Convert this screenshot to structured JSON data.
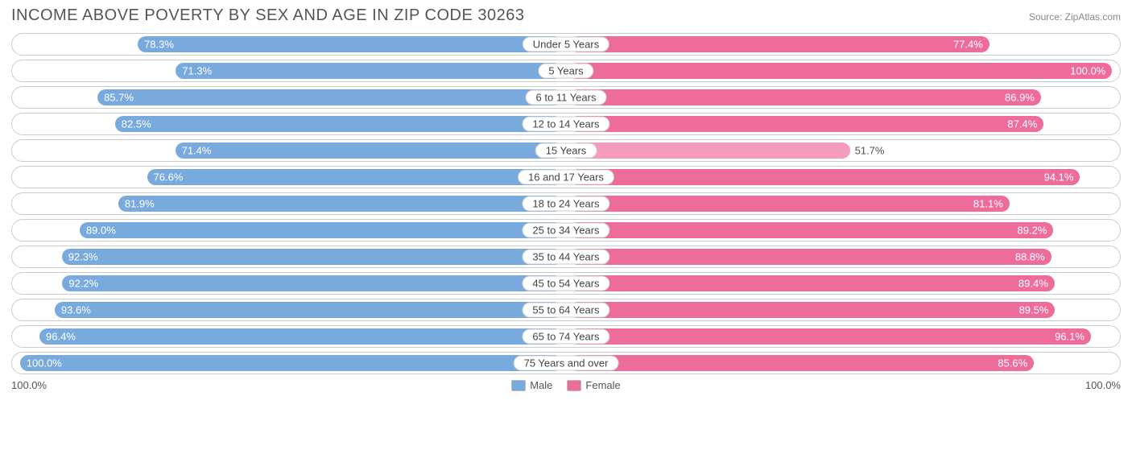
{
  "title": "INCOME ABOVE POVERTY BY SEX AND AGE IN ZIP CODE 30263",
  "source": "Source: ZipAtlas.com",
  "colors": {
    "male": "#79aade",
    "female": "#ed6c9b",
    "female_alt": "#f59bbd",
    "track_border": "#cccccc",
    "background": "#ffffff",
    "text": "#555555"
  },
  "axis": {
    "left_label": "100.0%",
    "right_label": "100.0%"
  },
  "legend": {
    "male": "Male",
    "female": "Female"
  },
  "rows": [
    {
      "category": "Under 5 Years",
      "male": 78.3,
      "male_label": "78.3%",
      "female": 77.4,
      "female_label": "77.4%"
    },
    {
      "category": "5 Years",
      "male": 71.3,
      "male_label": "71.3%",
      "female": 100.0,
      "female_label": "100.0%"
    },
    {
      "category": "6 to 11 Years",
      "male": 85.7,
      "male_label": "85.7%",
      "female": 86.9,
      "female_label": "86.9%"
    },
    {
      "category": "12 to 14 Years",
      "male": 82.5,
      "male_label": "82.5%",
      "female": 87.4,
      "female_label": "87.4%"
    },
    {
      "category": "15 Years",
      "male": 71.4,
      "male_label": "71.4%",
      "female": 51.7,
      "female_label": "51.7%",
      "female_alt": true,
      "short": true
    },
    {
      "category": "16 and 17 Years",
      "male": 76.6,
      "male_label": "76.6%",
      "female": 94.1,
      "female_label": "94.1%"
    },
    {
      "category": "18 to 24 Years",
      "male": 81.9,
      "male_label": "81.9%",
      "female": 81.1,
      "female_label": "81.1%"
    },
    {
      "category": "25 to 34 Years",
      "male": 89.0,
      "male_label": "89.0%",
      "female": 89.2,
      "female_label": "89.2%"
    },
    {
      "category": "35 to 44 Years",
      "male": 92.3,
      "male_label": "92.3%",
      "female": 88.8,
      "female_label": "88.8%"
    },
    {
      "category": "45 to 54 Years",
      "male": 92.2,
      "male_label": "92.2%",
      "female": 89.4,
      "female_label": "89.4%"
    },
    {
      "category": "55 to 64 Years",
      "male": 93.6,
      "male_label": "93.6%",
      "female": 89.5,
      "female_label": "89.5%"
    },
    {
      "category": "65 to 74 Years",
      "male": 96.4,
      "male_label": "96.4%",
      "female": 96.1,
      "female_label": "96.1%"
    },
    {
      "category": "75 Years and over",
      "male": 100.0,
      "male_label": "100.0%",
      "female": 85.6,
      "female_label": "85.6%"
    }
  ],
  "half_width_pct": 49.0
}
